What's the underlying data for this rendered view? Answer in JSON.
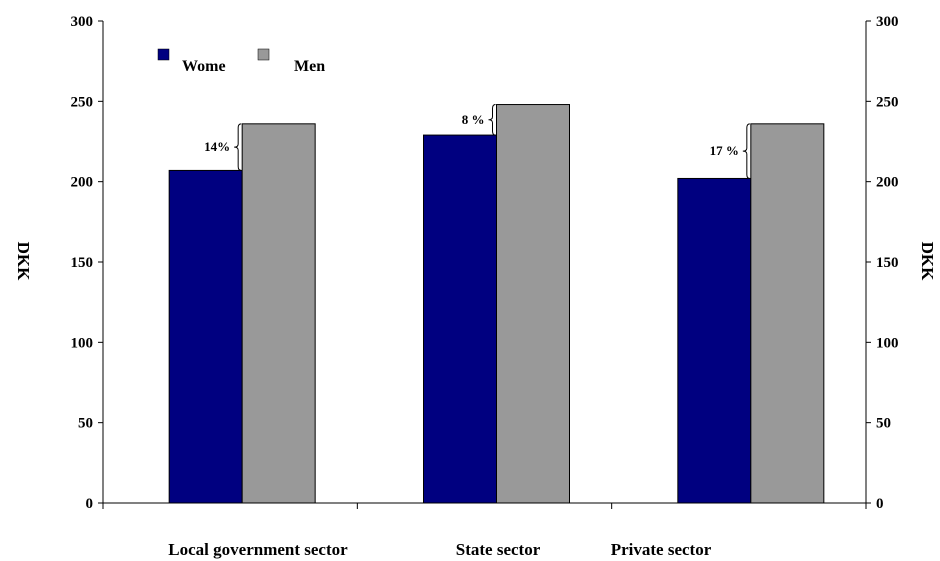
{
  "chart_data": {
    "type": "bar",
    "categories": [
      "Local government sector",
      "State sector",
      "Private sector"
    ],
    "series": [
      {
        "name": "Wome",
        "values": [
          207,
          229,
          202
        ],
        "color": "#000080"
      },
      {
        "name": "Men",
        "values": [
          236,
          248,
          236
        ],
        "color": "#999999"
      }
    ],
    "gap_labels": [
      "14%",
      "8 %",
      "17 %"
    ],
    "ylabel_left": "DKK",
    "ylabel_right": "DKK",
    "ylim": [
      0,
      300
    ],
    "yticks": [
      "0",
      "50",
      "100",
      "150",
      "200",
      "250",
      "300"
    ],
    "legend_position": "top-left",
    "grid": false
  }
}
